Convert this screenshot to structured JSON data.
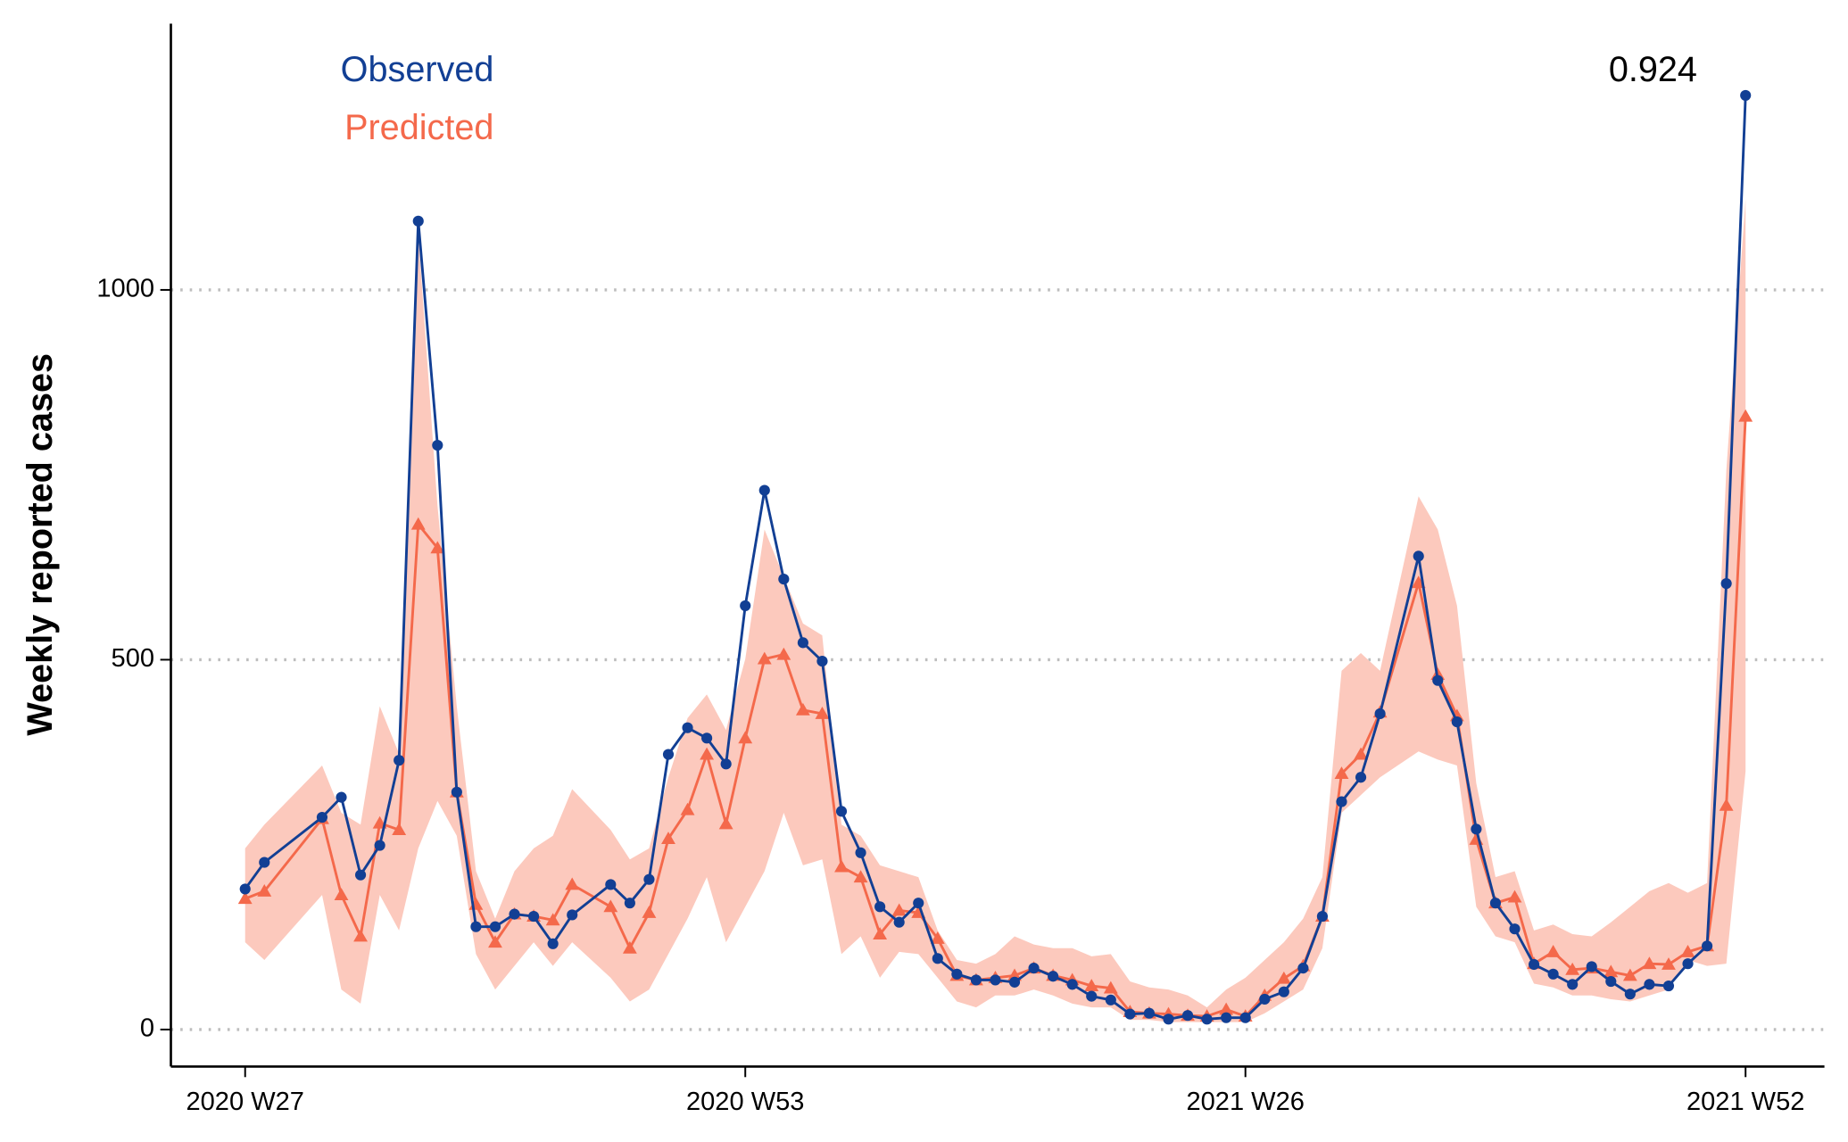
{
  "chart_data": {
    "type": "line",
    "y_label": "Weekly reported cases",
    "annotation": "0.924",
    "x": [
      0,
      1,
      4,
      5,
      6,
      7,
      8,
      9,
      10,
      11,
      12,
      13,
      14,
      15,
      16,
      17,
      19,
      20,
      21,
      22,
      23,
      24,
      25,
      26,
      27,
      28,
      29,
      30,
      31,
      32,
      33,
      34,
      35,
      36,
      37,
      38,
      39,
      40,
      41,
      42,
      43,
      44,
      45,
      46,
      47,
      48,
      49,
      50,
      51,
      52,
      53,
      54,
      55,
      56,
      57,
      58,
      59,
      61,
      62,
      63,
      64,
      65,
      66,
      67,
      68,
      69,
      70,
      71,
      72,
      73,
      74,
      75,
      76,
      77,
      78
    ],
    "xlim": [
      -3.86,
      82.1
    ],
    "xticks": [
      {
        "value": 0,
        "label": "2020 W27"
      },
      {
        "value": 26,
        "label": "2020 W53"
      },
      {
        "value": 52,
        "label": "2021 W26"
      },
      {
        "value": 78,
        "label": "2021 W52"
      }
    ],
    "ylim": [
      -50,
      1360
    ],
    "yticks": [
      0,
      500,
      1000
    ],
    "grid": true,
    "series": [
      {
        "name": "Observed",
        "color": "#123f94",
        "marker": "circle",
        "values": [
          190,
          226,
          287,
          314,
          209,
          249,
          364,
          1093,
          790,
          321,
          139,
          139,
          156,
          153,
          116,
          155,
          196,
          171,
          203,
          372,
          408,
          394,
          359,
          573,
          729,
          609,
          523,
          498,
          295,
          239,
          166,
          145,
          171,
          96,
          75,
          67,
          67,
          64,
          83,
          72,
          61,
          45,
          40,
          21,
          22,
          14,
          19,
          14,
          16,
          16,
          41,
          51,
          83,
          153,
          308,
          341,
          427,
          640,
          472,
          416,
          271,
          171,
          136,
          88,
          75,
          61,
          85,
          65,
          48,
          61,
          59,
          89,
          113,
          603,
          1263
        ]
      },
      {
        "name": "Predicted",
        "color": "#f4694b",
        "marker": "triangle",
        "values": [
          177,
          187,
          285,
          182,
          126,
          279,
          270,
          683,
          651,
          321,
          169,
          118,
          156,
          153,
          148,
          196,
          166,
          110,
          158,
          258,
          297,
          372,
          278,
          394,
          501,
          507,
          432,
          427,
          220,
          206,
          129,
          161,
          158,
          123,
          73,
          67,
          70,
          73,
          83,
          73,
          67,
          59,
          56,
          24,
          22,
          21,
          19,
          18,
          27,
          18,
          46,
          69,
          86,
          153,
          346,
          372,
          429,
          604,
          480,
          424,
          257,
          171,
          179,
          89,
          105,
          81,
          83,
          78,
          73,
          89,
          88,
          105,
          113,
          303,
          829
        ]
      }
    ],
    "interval": {
      "color": "#fcc9bd",
      "upper": [
        245,
        277,
        357,
        293,
        277,
        437,
        373,
        1075,
        708,
        437,
        214,
        150,
        214,
        245,
        262,
        325,
        270,
        230,
        245,
        341,
        421,
        453,
        405,
        501,
        676,
        612,
        549,
        533,
        277,
        262,
        222,
        214,
        206,
        134,
        94,
        89,
        102,
        126,
        115,
        110,
        110,
        99,
        102,
        65,
        57,
        54,
        46,
        30,
        54,
        70,
        94,
        118,
        150,
        206,
        485,
        509,
        485,
        721,
        676,
        573,
        333,
        206,
        214,
        134,
        142,
        129,
        126,
        145,
        166,
        187,
        198,
        185,
        198,
        756,
        1123
      ],
      "lower": [
        118,
        94,
        182,
        54,
        35,
        182,
        134,
        245,
        309,
        262,
        102,
        54,
        86,
        118,
        86,
        118,
        70,
        38,
        54,
        102,
        150,
        206,
        118,
        166,
        214,
        293,
        222,
        230,
        102,
        126,
        70,
        105,
        102,
        70,
        38,
        30,
        46,
        46,
        54,
        46,
        35,
        30,
        30,
        13,
        13,
        10,
        10,
        10,
        10,
        10,
        22,
        38,
        54,
        110,
        293,
        317,
        341,
        376,
        365,
        357,
        166,
        126,
        118,
        62,
        57,
        46,
        46,
        41,
        38,
        46,
        54,
        94,
        86,
        89,
        349
      ]
    }
  }
}
